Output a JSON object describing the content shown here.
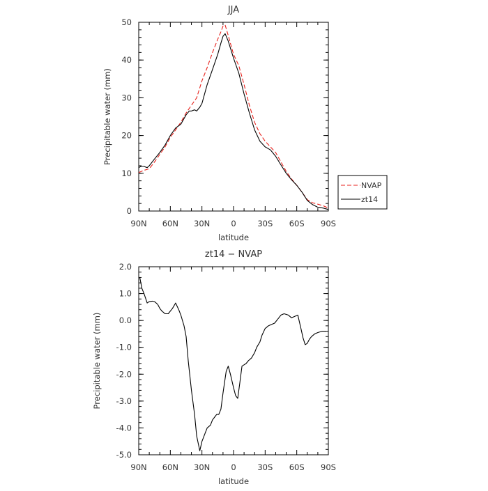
{
  "chart_data": [
    {
      "type": "line",
      "title": "JJA",
      "xlabel": "latitude",
      "ylabel": "Precipitable water (mm)",
      "xlim": [
        90,
        -90
      ],
      "ylim": [
        0,
        50
      ],
      "xticks": [
        {
          "value": 90,
          "label": "90N"
        },
        {
          "value": 60,
          "label": "60N"
        },
        {
          "value": 30,
          "label": "30N"
        },
        {
          "value": 0,
          "label": "0"
        },
        {
          "value": -30,
          "label": "30S"
        },
        {
          "value": -60,
          "label": "60S"
        },
        {
          "value": -90,
          "label": "90S"
        }
      ],
      "yticks": [
        {
          "value": 0,
          "label": "0"
        },
        {
          "value": 10,
          "label": "10"
        },
        {
          "value": 20,
          "label": "20"
        },
        {
          "value": 30,
          "label": "30"
        },
        {
          "value": 40,
          "label": "40"
        },
        {
          "value": 50,
          "label": "50"
        }
      ],
      "legend_position": "outside-right",
      "series": [
        {
          "name": "NVAP",
          "color": "#e8221c",
          "dash": "dashed",
          "x": [
            90,
            85,
            80,
            75,
            70,
            65,
            60,
            55,
            50,
            45,
            40,
            35,
            30,
            25,
            20,
            15,
            12,
            10,
            8,
            5,
            0,
            -5,
            -10,
            -15,
            -20,
            -25,
            -30,
            -35,
            -40,
            -45,
            -50,
            -55,
            -60,
            -65,
            -70,
            -75,
            -80,
            -85,
            -90
          ],
          "values": [
            10.2,
            10.8,
            11.2,
            13.0,
            15.0,
            17.0,
            19.5,
            21.5,
            23.5,
            26.0,
            28.0,
            30.0,
            34.5,
            38.0,
            42.0,
            45.5,
            47.5,
            49.0,
            49.3,
            46.5,
            41.5,
            38.5,
            33.5,
            28.0,
            23.5,
            20.5,
            18.5,
            17.0,
            15.5,
            13.0,
            10.5,
            8.5,
            6.8,
            5.0,
            3.0,
            2.2,
            1.8,
            1.4,
            0.8
          ]
        },
        {
          "name": "zt14",
          "color": "#000000",
          "dash": "solid",
          "x": [
            90,
            88,
            85,
            82,
            80,
            75,
            70,
            65,
            60,
            55,
            50,
            45,
            42,
            40,
            37,
            35,
            32,
            30,
            25,
            20,
            15,
            12,
            10,
            8,
            5,
            0,
            -5,
            -10,
            -15,
            -20,
            -25,
            -30,
            -35,
            -40,
            -45,
            -50,
            -55,
            -60,
            -65,
            -70,
            -75,
            -80,
            -85,
            -90
          ],
          "values": [
            11.5,
            11.8,
            11.8,
            11.5,
            12.0,
            13.8,
            15.5,
            17.5,
            20.0,
            22.0,
            23.0,
            25.5,
            26.5,
            26.5,
            26.8,
            26.5,
            27.5,
            28.5,
            33.5,
            37.5,
            41.5,
            44.5,
            46.3,
            47.0,
            45.0,
            40.5,
            36.5,
            31.0,
            26.0,
            21.5,
            18.5,
            17.0,
            16.2,
            14.5,
            12.2,
            10.0,
            8.3,
            6.8,
            5.0,
            2.8,
            1.7,
            1.0,
            0.8,
            0.4
          ]
        }
      ]
    },
    {
      "type": "line",
      "title": "zt14 − NVAP",
      "xlabel": "latitude",
      "ylabel": "Precipitable water (mm)",
      "xlim": [
        90,
        -90
      ],
      "ylim": [
        -5,
        2
      ],
      "xticks": [
        {
          "value": 90,
          "label": "90N"
        },
        {
          "value": 60,
          "label": "60N"
        },
        {
          "value": 30,
          "label": "30N"
        },
        {
          "value": 0,
          "label": "0"
        },
        {
          "value": -30,
          "label": "30S"
        },
        {
          "value": -60,
          "label": "60S"
        },
        {
          "value": -90,
          "label": "90S"
        }
      ],
      "yticks": [
        {
          "value": 2,
          "label": "2.0"
        },
        {
          "value": 1,
          "label": "1.0"
        },
        {
          "value": 0,
          "label": "0.0"
        },
        {
          "value": -1,
          "label": "-1.0"
        },
        {
          "value": -2,
          "label": "-2.0"
        },
        {
          "value": -3,
          "label": "-3.0"
        },
        {
          "value": -4,
          "label": "-4.0"
        },
        {
          "value": -5,
          "label": "-5.0"
        }
      ],
      "series": [
        {
          "name": "zt14 − NVAP",
          "color": "#000000",
          "dash": "solid",
          "x": [
            89,
            87,
            85,
            82,
            80,
            77,
            75,
            72,
            70,
            68,
            65,
            62,
            58,
            55,
            52,
            50,
            47,
            45,
            43,
            40,
            37,
            35,
            32,
            30,
            29,
            27,
            25,
            22,
            20,
            18,
            16,
            14,
            12,
            10,
            7,
            5,
            3,
            0,
            -2,
            -4,
            -6,
            -8,
            -10,
            -12,
            -14,
            -17,
            -20,
            -22,
            -25,
            -27,
            -30,
            -33,
            -36,
            -39,
            -42,
            -45,
            -48,
            -52,
            -55,
            -58,
            -61,
            -64,
            -66,
            -68,
            -70,
            -72,
            -74,
            -77,
            -80,
            -84,
            -88
          ],
          "values": [
            1.6,
            1.2,
            1.0,
            0.65,
            0.7,
            0.72,
            0.7,
            0.6,
            0.45,
            0.35,
            0.25,
            0.25,
            0.45,
            0.65,
            0.4,
            0.2,
            -0.2,
            -0.6,
            -1.5,
            -2.6,
            -3.5,
            -4.3,
            -4.85,
            -4.5,
            -4.4,
            -4.2,
            -4.0,
            -3.9,
            -3.7,
            -3.6,
            -3.5,
            -3.5,
            -3.3,
            -2.7,
            -1.9,
            -1.7,
            -2.0,
            -2.5,
            -2.8,
            -2.9,
            -2.3,
            -1.7,
            -1.65,
            -1.6,
            -1.5,
            -1.4,
            -1.2,
            -1.0,
            -0.8,
            -0.55,
            -0.3,
            -0.2,
            -0.15,
            -0.1,
            0.05,
            0.2,
            0.25,
            0.2,
            0.1,
            0.15,
            0.2,
            -0.3,
            -0.65,
            -0.9,
            -0.85,
            -0.7,
            -0.6,
            -0.5,
            -0.45,
            -0.4,
            -0.4
          ]
        }
      ]
    }
  ]
}
